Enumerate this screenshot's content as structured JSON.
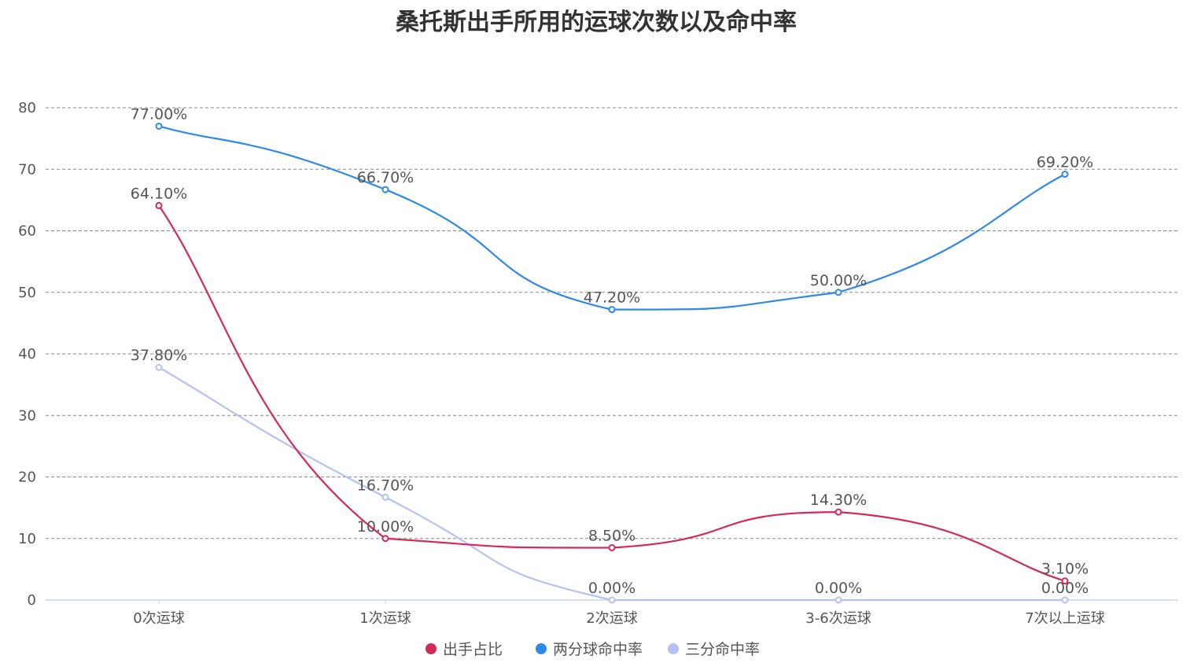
{
  "chart_data": {
    "type": "line",
    "title": "桑托斯出手所用的运球次数以及命中率",
    "categories": [
      "0次运球",
      "1次运球",
      "2次运球",
      "3-6次运球",
      "7次以上运球"
    ],
    "ylim": [
      0,
      80
    ],
    "yticks": [
      0,
      10,
      20,
      30,
      40,
      50,
      60,
      70,
      80
    ],
    "grid": true,
    "smooth": true,
    "legend_position": "bottom-center",
    "series": [
      {
        "name": "出手占比",
        "color": "#d42a5b",
        "values": [
          64.1,
          10.0,
          8.5,
          14.3,
          3.1
        ],
        "labels": [
          "64.10%",
          "10.00%",
          "8.50%",
          "14.30%",
          "3.10%"
        ]
      },
      {
        "name": "两分球命中率",
        "color": "#2f89e8",
        "values": [
          77.0,
          66.7,
          47.2,
          50.0,
          69.2
        ],
        "labels": [
          "77.00%",
          "66.70%",
          "47.20%",
          "50.00%",
          "69.20%"
        ]
      },
      {
        "name": "三分命中率",
        "color": "#b5c1f3",
        "values": [
          37.8,
          16.7,
          0.0,
          0.0,
          0.0
        ],
        "labels": [
          "37.80%",
          "16.70%",
          "0.00%",
          "0.00%",
          "0.00%"
        ]
      }
    ]
  }
}
